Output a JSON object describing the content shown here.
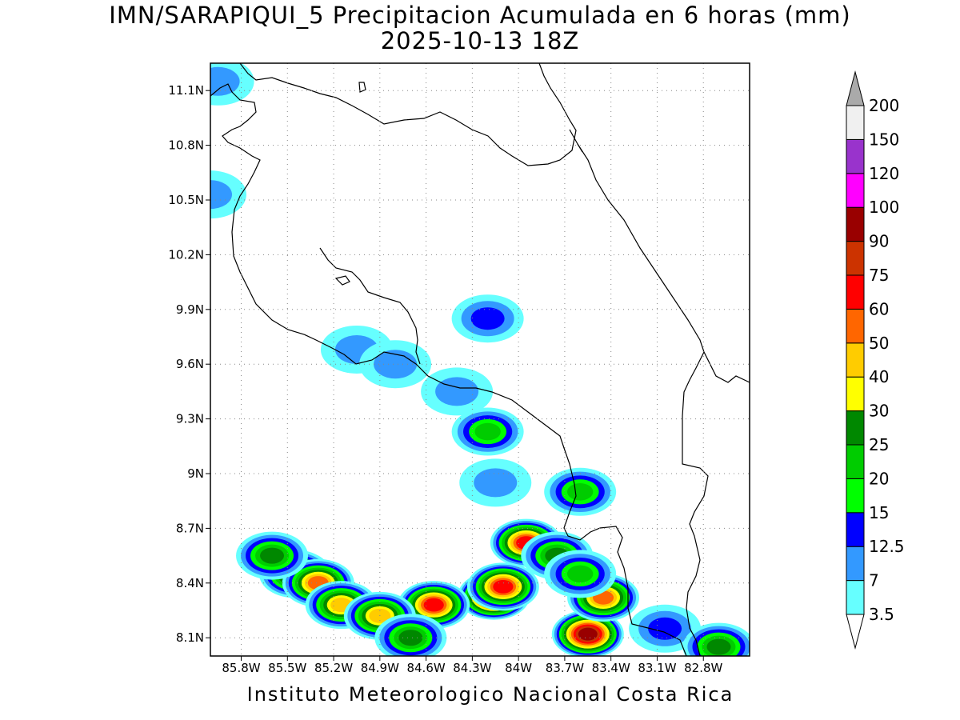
{
  "title": {
    "line1": "IMN/SARAPIQUI_5 Precipitacion Acumulada en 6 horas (mm)",
    "line2": "2025-10-13 18Z"
  },
  "footer": "Instituto Meteorologico Nacional Costa Rica",
  "map": {
    "lon_range": [
      -86.0,
      -82.5
    ],
    "lat_range": [
      8.0,
      11.25
    ],
    "lon_ticks": [
      "85.8W",
      "85.5W",
      "85.2W",
      "84.9W",
      "84.6W",
      "84.3W",
      "84W",
      "83.7W",
      "83.4W",
      "83.1W",
      "82.8W"
    ],
    "lon_values": [
      -85.8,
      -85.5,
      -85.2,
      -84.9,
      -84.6,
      -84.3,
      -84.0,
      -83.7,
      -83.4,
      -83.1,
      -82.8
    ],
    "lat_ticks": [
      "11.1N",
      "10.8N",
      "10.5N",
      "10.2N",
      "9.9N",
      "9.6N",
      "9.3N",
      "9N",
      "8.7N",
      "8.4N",
      "8.1N"
    ],
    "lat_values": [
      11.1,
      10.8,
      10.5,
      10.2,
      9.9,
      9.6,
      9.3,
      9.0,
      8.7,
      8.4,
      8.1
    ],
    "grid": true
  },
  "colorbar": {
    "levels": [
      "3.5",
      "7",
      "12.5",
      "15",
      "20",
      "25",
      "30",
      "40",
      "50",
      "60",
      "75",
      "90",
      "100",
      "120",
      "150",
      "200"
    ],
    "colors": [
      "#ffffff",
      "#66ffff",
      "#3399ff",
      "#0000ff",
      "#00ff00",
      "#00cc00",
      "#008800",
      "#ffff00",
      "#ffcc00",
      "#ff6600",
      "#ff0000",
      "#cc3300",
      "#990000",
      "#ff00ff",
      "#9933cc",
      "#f0f0f0",
      "#aaaaaa"
    ]
  },
  "precip_cells": [
    {
      "lon": -84.16,
      "lat": 8.33,
      "mm": 100
    },
    {
      "lon": -84.1,
      "lat": 8.38,
      "mm": 60
    },
    {
      "lon": -83.95,
      "lat": 8.62,
      "mm": 60
    },
    {
      "lon": -83.55,
      "lat": 8.12,
      "mm": 90
    },
    {
      "lon": -83.45,
      "lat": 8.32,
      "mm": 50
    },
    {
      "lon": -84.55,
      "lat": 8.28,
      "mm": 60
    },
    {
      "lon": -85.45,
      "lat": 8.45,
      "mm": 40
    },
    {
      "lon": -85.3,
      "lat": 8.4,
      "mm": 50
    },
    {
      "lon": -85.15,
      "lat": 8.28,
      "mm": 40
    },
    {
      "lon": -84.9,
      "lat": 8.22,
      "mm": 40
    },
    {
      "lon": -84.2,
      "lat": 9.23,
      "mm": 20
    },
    {
      "lon": -83.6,
      "lat": 8.9,
      "mm": 20
    },
    {
      "lon": -85.6,
      "lat": 8.55,
      "mm": 25
    },
    {
      "lon": -83.75,
      "lat": 8.55,
      "mm": 25
    },
    {
      "lon": -83.6,
      "lat": 8.45,
      "mm": 20
    },
    {
      "lon": -84.7,
      "lat": 8.1,
      "mm": 25
    },
    {
      "lon": -84.4,
      "lat": 9.45,
      "mm": 7
    },
    {
      "lon": -84.2,
      "lat": 9.85,
      "mm": 12.5
    },
    {
      "lon": -85.05,
      "lat": 9.68,
      "mm": 7
    },
    {
      "lon": -84.8,
      "lat": 9.6,
      "mm": 7
    },
    {
      "lon": -83.05,
      "lat": 8.15,
      "mm": 12.5
    },
    {
      "lon": -84.15,
      "lat": 8.95,
      "mm": 7
    },
    {
      "lon": -85.95,
      "lat": 11.15,
      "mm": 7
    },
    {
      "lon": -86.0,
      "lat": 10.53,
      "mm": 7
    },
    {
      "lon": -82.7,
      "lat": 8.05,
      "mm": 25
    }
  ]
}
